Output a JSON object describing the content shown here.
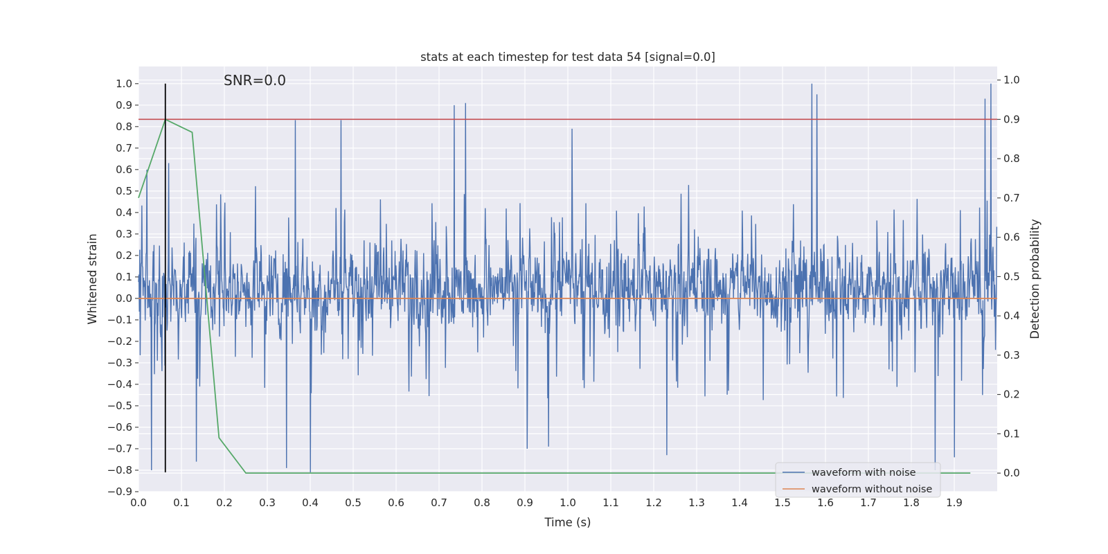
{
  "chart_data": {
    "type": "line",
    "title": "stats at each timestep for test data 54 [signal=0.0]",
    "xlabel": "Time (s)",
    "ylabel": "Whitened strain",
    "y2label": "Detection probability",
    "annotation": "SNR=0.0",
    "xlim": [
      0.0,
      2.0
    ],
    "ylim": [
      -0.9,
      1.08
    ],
    "y2lim": [
      -0.0473,
      1.0345
    ],
    "x_ticks": [
      "0.0",
      "0.1",
      "0.2",
      "0.3",
      "0.4",
      "0.5",
      "0.6",
      "0.7",
      "0.8",
      "0.9",
      "1.0",
      "1.1",
      "1.2",
      "1.3",
      "1.4",
      "1.5",
      "1.6",
      "1.7",
      "1.8",
      "1.9"
    ],
    "y_ticks": [
      "1.0",
      "0.9",
      "0.8",
      "0.7",
      "0.6",
      "0.5",
      "0.4",
      "0.3",
      "0.2",
      "0.1",
      "0.0",
      "−0.1",
      "−0.2",
      "−0.3",
      "−0.4",
      "−0.5",
      "−0.6",
      "−0.7",
      "−0.8",
      "−0.9"
    ],
    "y2_ticks": [
      "1.0",
      "0.9",
      "0.8",
      "0.7",
      "0.6",
      "0.5",
      "0.4",
      "0.3",
      "0.2",
      "0.1",
      "0.0"
    ],
    "grid": true,
    "legend_position": "lower-right",
    "colors": {
      "background": "#eaeaf2",
      "grid": "#ffffff",
      "waveform_with_noise": "#4c72b0",
      "waveform_without_noise": "#dd8452",
      "detection_probability": "#55a868",
      "threshold": "#c44e52",
      "marker": "#000000"
    },
    "series": [
      {
        "name": "waveform with noise",
        "axis": "left",
        "style": "noise",
        "sample_rate_hz": 1024,
        "x_range": [
          0.0,
          2.0
        ],
        "value_range": [
          -0.81,
          1.0
        ],
        "typical_range": [
          -0.35,
          0.45
        ],
        "peaks": [
          {
            "x": 0.365,
            "y": 0.83
          },
          {
            "x": 0.472,
            "y": 0.83
          },
          {
            "x": 0.735,
            "y": 0.9
          },
          {
            "x": 0.762,
            "y": 0.91
          },
          {
            "x": 1.01,
            "y": 0.79
          },
          {
            "x": 1.568,
            "y": 1.0
          },
          {
            "x": 1.58,
            "y": 0.95
          },
          {
            "x": 1.985,
            "y": 1.0
          },
          {
            "x": 1.972,
            "y": 0.93
          },
          {
            "x": 0.02,
            "y": 0.6
          },
          {
            "x": 0.07,
            "y": 0.63
          }
        ],
        "troughs": [
          {
            "x": 0.03,
            "y": -0.8
          },
          {
            "x": 0.135,
            "y": -0.76
          },
          {
            "x": 0.345,
            "y": -0.79
          },
          {
            "x": 0.4,
            "y": -0.81
          },
          {
            "x": 0.905,
            "y": -0.7
          },
          {
            "x": 0.955,
            "y": -0.69
          },
          {
            "x": 1.23,
            "y": -0.73
          },
          {
            "x": 1.855,
            "y": -0.8
          },
          {
            "x": 1.9,
            "y": -0.74
          }
        ]
      },
      {
        "name": "waveform without noise",
        "axis": "left",
        "x": [
          0.0,
          2.0
        ],
        "y": [
          0.0,
          0.0
        ]
      },
      {
        "axis": "right",
        "x": [
          0.0,
          0.0625,
          0.125,
          0.1875,
          0.25,
          0.3125,
          1.9375
        ],
        "y": [
          0.7,
          0.9,
          0.867,
          0.09,
          0.0,
          0.0,
          0.0
        ]
      },
      {
        "axis": "right",
        "style": "hline",
        "y": 0.9
      },
      {
        "axis": "left",
        "style": "vline",
        "x": 0.0625,
        "y": [
          -0.81,
          1.0
        ]
      }
    ]
  }
}
